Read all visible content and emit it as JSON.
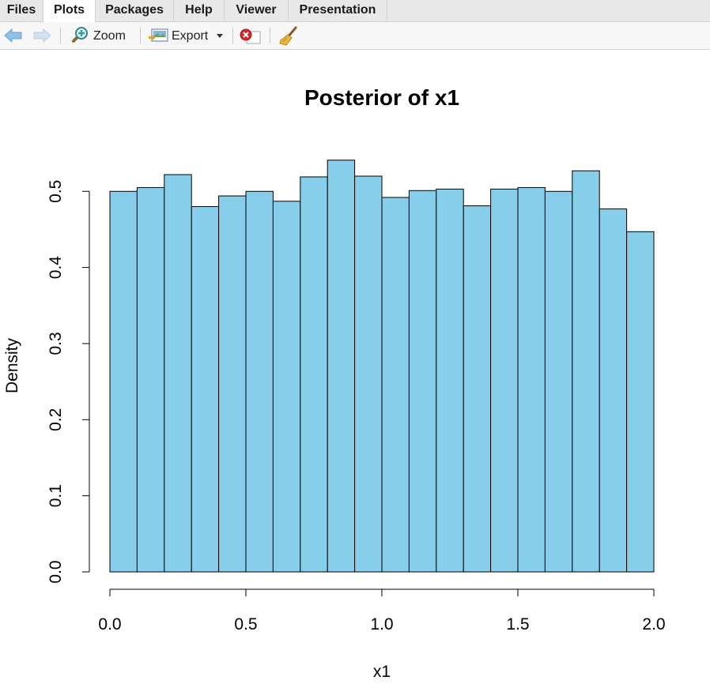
{
  "tabs": [
    {
      "label": "Files",
      "active": false
    },
    {
      "label": "Plots",
      "active": true
    },
    {
      "label": "Packages",
      "active": false
    },
    {
      "label": "Help",
      "active": false
    },
    {
      "label": "Viewer",
      "active": false
    },
    {
      "label": "Presentation",
      "active": false
    }
  ],
  "toolbar": {
    "back_icon": "back-arrow-icon",
    "forward_icon": "forward-arrow-icon",
    "zoom_label": "Zoom",
    "export_label": "Export",
    "remove_icon": "remove-plot-icon",
    "clear_icon": "broom-icon"
  },
  "colors": {
    "bar_fill": "#87ceeb",
    "bar_stroke": "#000000",
    "tab_active": "#ffffff",
    "tab_bg": "#e8e8e8"
  },
  "chart_data": {
    "type": "bar",
    "title": "Posterior of x1",
    "xlabel": "x1",
    "ylabel": "Density",
    "bin_edges": [
      0.0,
      0.1,
      0.2,
      0.3,
      0.4,
      0.5,
      0.6,
      0.7,
      0.8,
      0.9,
      1.0,
      1.1,
      1.2,
      1.3,
      1.4,
      1.5,
      1.6,
      1.7,
      1.8,
      1.9,
      2.0
    ],
    "values": [
      0.5,
      0.505,
      0.522,
      0.48,
      0.494,
      0.5,
      0.487,
      0.519,
      0.541,
      0.52,
      0.492,
      0.501,
      0.503,
      0.481,
      0.503,
      0.505,
      0.5,
      0.527,
      0.477,
      0.447
    ],
    "xlim": [
      0.0,
      2.0
    ],
    "ylim": [
      0.0,
      0.55
    ],
    "x_ticks": [
      "0.0",
      "0.5",
      "1.0",
      "1.5",
      "2.0"
    ],
    "y_ticks": [
      "0.0",
      "0.1",
      "0.2",
      "0.3",
      "0.4",
      "0.5"
    ],
    "grid": false,
    "legend": "none"
  }
}
